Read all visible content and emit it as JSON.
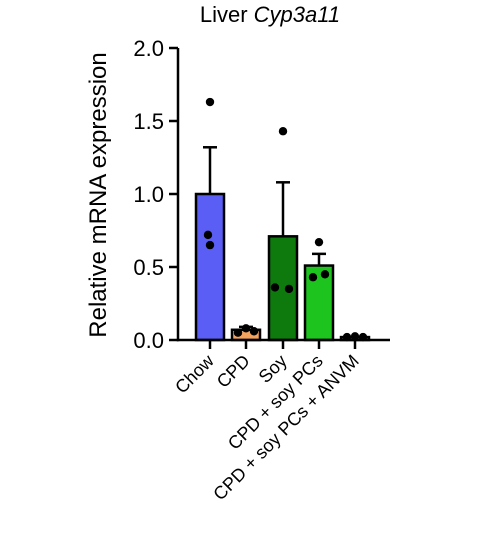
{
  "chart_data": {
    "type": "bar",
    "title_plain": "Liver ",
    "title_italic": "Cyp3a11",
    "ylabel": "Relative mRNA expression",
    "xlabel": "",
    "ylim": [
      0,
      2.0
    ],
    "yticks": [
      0.0,
      0.5,
      1.0,
      1.5,
      2.0
    ],
    "ytick_labels": [
      "0.0",
      "0.5",
      "1.0",
      "1.5",
      "2.0"
    ],
    "grid": false,
    "legend": "none",
    "categories": [
      "Chow",
      "CPD",
      "Soy",
      "CPD + soy PCs",
      "CPD + soy PCs + ANVM"
    ],
    "values": [
      1.0,
      0.07,
      0.71,
      0.51,
      0.02
    ],
    "errors": [
      0.32,
      0.02,
      0.37,
      0.08,
      0.005
    ],
    "points": [
      [
        1.63,
        0.72,
        0.65
      ],
      [
        0.05,
        0.08,
        0.06
      ],
      [
        1.43,
        0.36,
        0.35
      ],
      [
        0.67,
        0.43,
        0.45
      ],
      [
        0.02,
        0.025,
        0.02
      ]
    ],
    "colors": [
      "#5b5ef4",
      "#f5a25e",
      "#0e7a0e",
      "#1ec41e",
      "#9a9a9a"
    ]
  }
}
